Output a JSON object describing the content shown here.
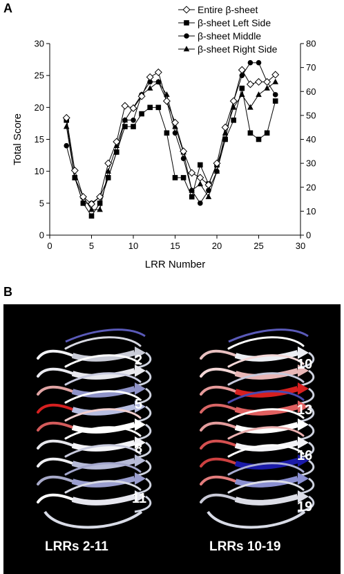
{
  "panel_a_label": "A",
  "panel_b_label": "B",
  "chart_data": {
    "type": "line",
    "xlabel": "LRR Number",
    "ylabel": "Total Score",
    "xlim": [
      0,
      30
    ],
    "ylim": [
      0,
      30
    ],
    "y2lim": [
      0,
      80
    ],
    "xticks": [
      "0",
      "5",
      "10",
      "15",
      "20",
      "25",
      "30"
    ],
    "yticks": [
      "0",
      "5",
      "10",
      "15",
      "20",
      "25",
      "30"
    ],
    "y2ticks": [
      "0",
      "10",
      "20",
      "30",
      "40",
      "50",
      "60",
      "70",
      "80"
    ],
    "x": [
      2,
      3,
      4,
      5,
      6,
      7,
      8,
      9,
      10,
      11,
      12,
      13,
      14,
      15,
      16,
      17,
      18,
      19,
      20,
      21,
      22,
      23,
      24,
      25,
      26,
      27
    ],
    "series": [
      {
        "name": "Entire β-sheet",
        "axis": "right",
        "marker": "diamond-open",
        "values": [
          49,
          27,
          16,
          13,
          16,
          30,
          39,
          54,
          53,
          58,
          66,
          68,
          56,
          47,
          35,
          26,
          24,
          21,
          30,
          45,
          56,
          69,
          63,
          64,
          64,
          67
        ]
      },
      {
        "name": "β-sheet Left Side",
        "axis": "left",
        "marker": "square",
        "values": [
          18,
          9,
          5,
          3,
          5,
          9,
          13,
          17,
          17,
          19,
          20,
          20,
          16,
          9,
          9,
          6,
          11,
          8,
          11,
          15,
          18,
          23,
          16,
          15,
          16,
          21
        ]
      },
      {
        "name": "β-sheet Middle",
        "axis": "left",
        "marker": "circle",
        "values": [
          14,
          9,
          5,
          5,
          6,
          9,
          13,
          18,
          18,
          22,
          24,
          24,
          21,
          16,
          12,
          7,
          5,
          7,
          10,
          15,
          21,
          25,
          27,
          27,
          24,
          22
        ]
      },
      {
        "name": "β-sheet Right Side",
        "axis": "left",
        "marker": "triangle",
        "values": [
          17,
          9,
          6,
          4,
          4,
          10,
          14,
          18,
          20,
          22,
          23,
          24,
          22,
          17,
          13,
          7,
          8,
          6,
          10,
          16,
          20,
          22,
          20,
          22,
          23,
          24
        ]
      }
    ],
    "legend_position": "top-right"
  },
  "panel_b": {
    "repeat_numbers_left": [
      "2",
      "5",
      "8",
      "11"
    ],
    "repeat_numbers_right": [
      "10",
      "13",
      "16",
      "19"
    ],
    "caption_left": "LRRs 2-11",
    "caption_right": "LRRs 10-19",
    "colors": {
      "background": "#000000",
      "high": "#d62020",
      "low": "#1a1aa8",
      "neutral": "#f2f2f2"
    }
  }
}
